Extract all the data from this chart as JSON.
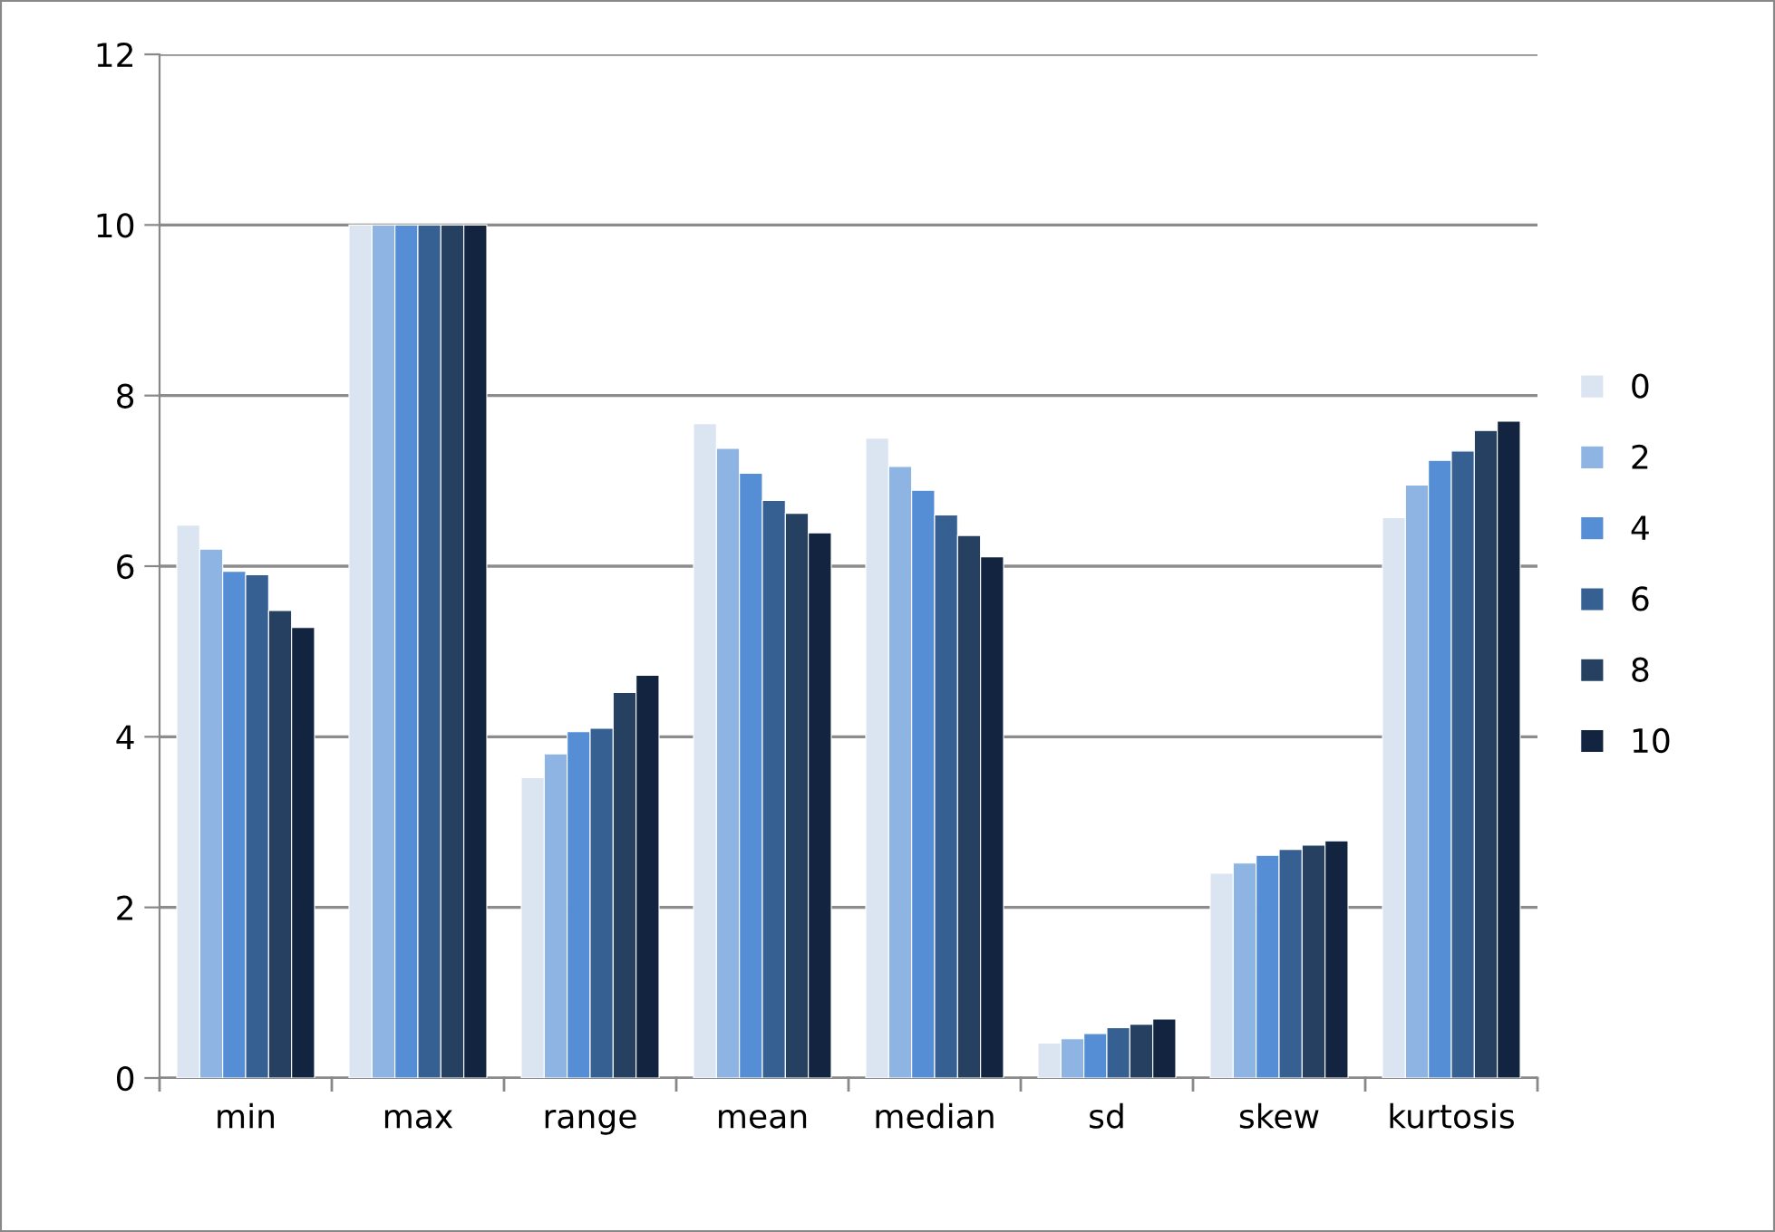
{
  "chart_data": {
    "type": "bar",
    "categories": [
      "min",
      "max",
      "range",
      "mean",
      "median",
      "sd",
      "skew",
      "kurtosis"
    ],
    "series": [
      {
        "name": "0",
        "color": "#dbe5f1",
        "values": [
          6.48,
          10,
          3.52,
          7.67,
          7.5,
          0.41,
          2.4,
          6.57
        ]
      },
      {
        "name": "2",
        "color": "#8eb4e3",
        "values": [
          6.2,
          10,
          3.8,
          7.38,
          7.17,
          0.46,
          2.52,
          6.95
        ]
      },
      {
        "name": "4",
        "color": "#558ed5",
        "values": [
          5.94,
          10,
          4.06,
          7.09,
          6.89,
          0.52,
          2.61,
          7.24
        ]
      },
      {
        "name": "6",
        "color": "#376092",
        "values": [
          5.9,
          10,
          4.1,
          6.77,
          6.6,
          0.59,
          2.68,
          7.35
        ]
      },
      {
        "name": "8",
        "color": "#254061",
        "values": [
          5.48,
          10,
          4.52,
          6.62,
          6.36,
          0.63,
          2.73,
          7.59
        ]
      },
      {
        "name": "10",
        "color": "#12243f",
        "values": [
          5.28,
          10,
          4.72,
          6.39,
          6.11,
          0.69,
          2.78,
          7.7
        ]
      }
    ],
    "ylim": [
      0,
      12
    ],
    "yticks": [
      0,
      2,
      4,
      6,
      8,
      10,
      12
    ],
    "grid": "y",
    "legend": "right"
  }
}
